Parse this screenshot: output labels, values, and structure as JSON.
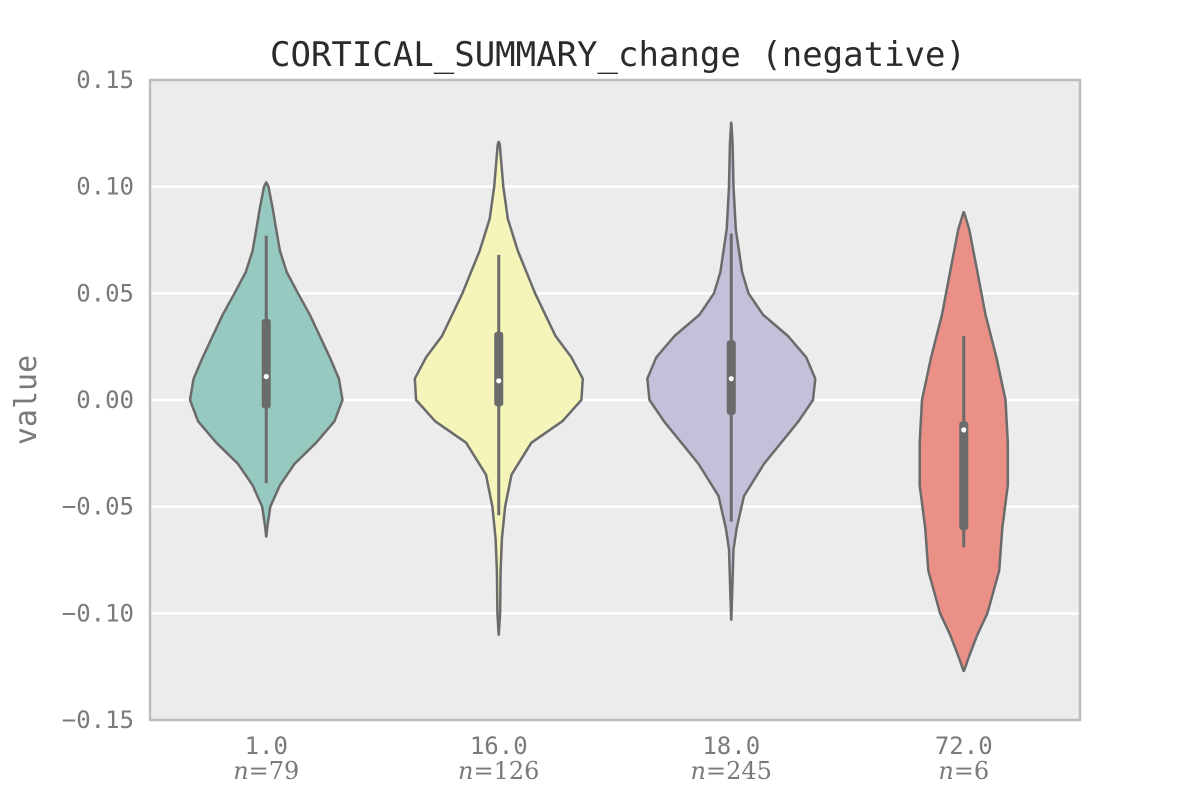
{
  "chart_data": {
    "type": "violin",
    "title": "CORTICAL_SUMMARY_change (negative)",
    "xlabel": "",
    "ylabel": "value",
    "ylim": [
      -0.15,
      0.15
    ],
    "y_ticks": [
      "0.15",
      "0.10",
      "0.05",
      "0.00",
      "−0.05",
      "−0.10",
      "−0.15"
    ],
    "grid": true,
    "categories": [
      {
        "label": "1.0",
        "n_prefix": "n",
        "n_value": "=79",
        "color": "#96c9bf",
        "profile": [
          [
            -0.064,
            0.2
          ],
          [
            -0.06,
            2
          ],
          [
            -0.05,
            9
          ],
          [
            -0.04,
            30
          ],
          [
            -0.03,
            62
          ],
          [
            -0.02,
            110
          ],
          [
            -0.01,
            150
          ],
          [
            0.0,
            168
          ],
          [
            0.01,
            160
          ],
          [
            0.02,
            140
          ],
          [
            0.03,
            118
          ],
          [
            0.04,
            96
          ],
          [
            0.05,
            70
          ],
          [
            0.06,
            45
          ],
          [
            0.07,
            30
          ],
          [
            0.08,
            22
          ],
          [
            0.09,
            14
          ],
          [
            0.1,
            5
          ],
          [
            0.102,
            0.2
          ]
        ],
        "whisker": [
          -0.039,
          0.077
        ],
        "box": [
          -0.004,
          0.038
        ],
        "median": 0.011
      },
      {
        "label": "16.0",
        "n_prefix": "n",
        "n_value": "=126",
        "color": "#f5f5ba",
        "profile": [
          [
            -0.11,
            0.2
          ],
          [
            -0.1,
            3
          ],
          [
            -0.08,
            4
          ],
          [
            -0.065,
            7
          ],
          [
            -0.05,
            14
          ],
          [
            -0.035,
            28
          ],
          [
            -0.02,
            72
          ],
          [
            -0.01,
            140
          ],
          [
            0.0,
            182
          ],
          [
            0.01,
            185
          ],
          [
            0.02,
            160
          ],
          [
            0.03,
            125
          ],
          [
            0.05,
            80
          ],
          [
            0.07,
            42
          ],
          [
            0.085,
            20
          ],
          [
            0.1,
            10
          ],
          [
            0.11,
            6
          ],
          [
            0.12,
            2
          ],
          [
            0.121,
            0.2
          ]
        ],
        "whisker": [
          -0.054,
          0.068
        ],
        "box": [
          -0.003,
          0.032
        ],
        "median": 0.009
      },
      {
        "label": "18.0",
        "n_prefix": "n",
        "n_value": "=245",
        "color": "#c3c0d9",
        "profile": [
          [
            -0.103,
            0.2
          ],
          [
            -0.09,
            2
          ],
          [
            -0.07,
            5
          ],
          [
            -0.06,
            12
          ],
          [
            -0.045,
            28
          ],
          [
            -0.03,
            72
          ],
          [
            -0.01,
            148
          ],
          [
            0.0,
            180
          ],
          [
            0.01,
            185
          ],
          [
            0.02,
            165
          ],
          [
            0.03,
            125
          ],
          [
            0.04,
            70
          ],
          [
            0.05,
            38
          ],
          [
            0.06,
            24
          ],
          [
            0.08,
            10
          ],
          [
            0.1,
            5
          ],
          [
            0.12,
            3
          ],
          [
            0.13,
            0.2
          ]
        ],
        "whisker": [
          -0.057,
          0.078
        ],
        "box": [
          -0.007,
          0.028
        ],
        "median": 0.01
      },
      {
        "label": "72.0",
        "n_prefix": "n",
        "n_value": "=6",
        "color": "#ea9087",
        "profile": [
          [
            -0.127,
            0.5
          ],
          [
            -0.12,
            12
          ],
          [
            -0.11,
            30
          ],
          [
            -0.1,
            52
          ],
          [
            -0.08,
            78
          ],
          [
            -0.06,
            85
          ],
          [
            -0.04,
            97
          ],
          [
            -0.02,
            97
          ],
          [
            0.0,
            92
          ],
          [
            0.02,
            72
          ],
          [
            0.04,
            48
          ],
          [
            0.06,
            30
          ],
          [
            0.08,
            12
          ],
          [
            0.088,
            0.5
          ]
        ],
        "whisker": [
          -0.069,
          0.03
        ],
        "box": [
          -0.061,
          -0.01
        ],
        "median": -0.014
      }
    ]
  },
  "colors": {
    "plot_background": "#ececec",
    "grid": "#ffffff",
    "axis": "#bdbdbd",
    "violin_edge": "#6b6b6b",
    "box": "#6b6b6b",
    "median": "#ffffff"
  }
}
